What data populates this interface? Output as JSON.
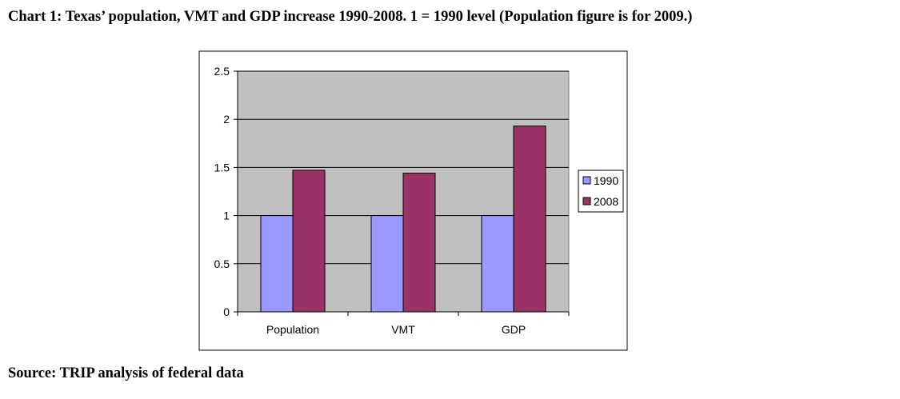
{
  "caption": {
    "title": "Chart 1:  Texas’ population, VMT and GDP increase 1990-2008.  1 = 1990 level (Population figure is for 2009.)"
  },
  "source": {
    "text": "Source:  TRIP analysis of federal data"
  },
  "chart_data": {
    "type": "bar",
    "categories": [
      "Population",
      "VMT",
      "GDP"
    ],
    "series": [
      {
        "name": "1990",
        "values": [
          1,
          1,
          1
        ],
        "color": "#9999ff"
      },
      {
        "name": "2008",
        "values": [
          1.47,
          1.44,
          1.93
        ],
        "color": "#993366"
      }
    ],
    "ylim": [
      0,
      2.5
    ],
    "yticks": [
      0,
      0.5,
      1,
      1.5,
      2,
      2.5
    ],
    "ytick_labels": [
      "0",
      "0.5",
      "1",
      "1.5",
      "2",
      "2.5"
    ],
    "grid": true,
    "plot_background": "#c0c0c0",
    "legend_position": "right"
  }
}
